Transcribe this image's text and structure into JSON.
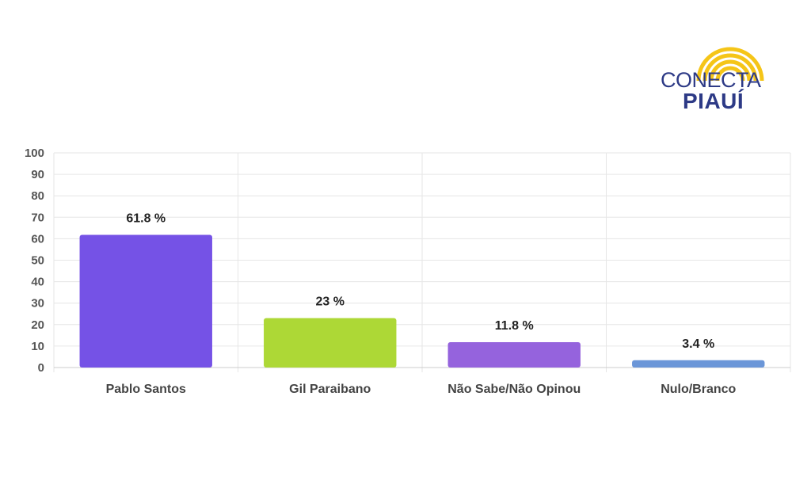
{
  "logo": {
    "brand": "CONECTA",
    "sub": "PIAUÍ",
    "color": "#2d3a86",
    "accent": "#f5c518",
    "icon": "sun-rays-icon"
  },
  "chart_data": {
    "type": "bar",
    "categories": [
      "Pablo Santos",
      "Gil Paraibano",
      "Não Sabe/Não Opinou",
      "Nulo/Branco"
    ],
    "values": [
      61.8,
      23,
      11.8,
      3.4
    ],
    "data_labels": [
      "61.8 %",
      "23 %",
      "11.8 %",
      "3.4 %"
    ],
    "colors": [
      "#7552e6",
      "#add836",
      "#9563dd",
      "#6b96d8"
    ],
    "ylim": [
      0,
      100
    ],
    "yticks": [
      0,
      10,
      20,
      30,
      40,
      50,
      60,
      70,
      80,
      90,
      100
    ],
    "grid": true,
    "legend": "none"
  }
}
